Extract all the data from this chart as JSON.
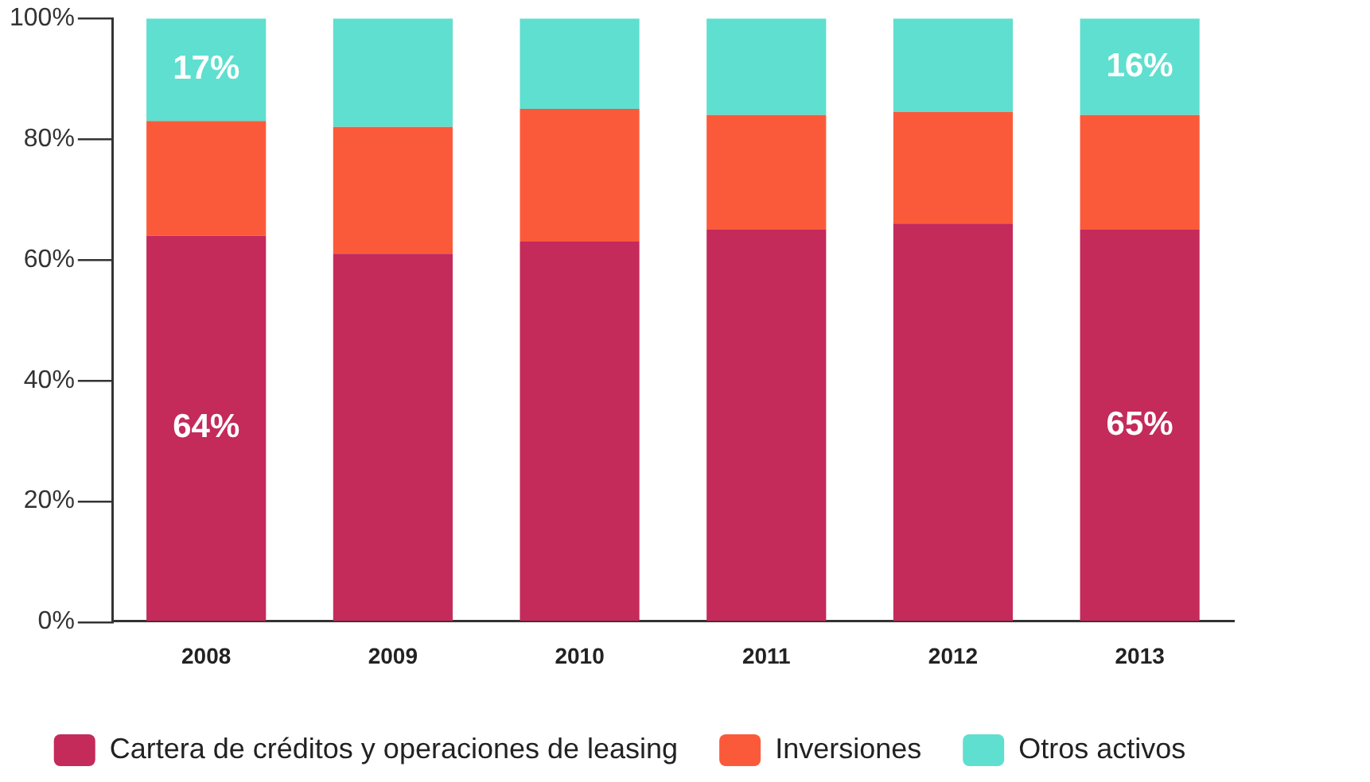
{
  "chart_data": {
    "type": "bar",
    "stacked": true,
    "categories": [
      "2008",
      "2009",
      "2010",
      "2011",
      "2012",
      "2013"
    ],
    "series": [
      {
        "name": "Cartera de créditos y operaciones de leasing",
        "color": "#c42a5a",
        "values": [
          64,
          61,
          63,
          65,
          66,
          65
        ],
        "value_labels": [
          "64%",
          null,
          null,
          null,
          null,
          "65%"
        ]
      },
      {
        "name": "Inversiones",
        "color": "#fb5a3a",
        "values": [
          19,
          21,
          22,
          19,
          18.5,
          19
        ]
      },
      {
        "name": "Otros activos",
        "color": "#5fdfcf",
        "values": [
          17,
          18,
          15,
          16,
          15.5,
          16
        ],
        "value_labels": [
          "17%",
          null,
          null,
          null,
          null,
          "16%"
        ]
      }
    ],
    "ylim": [
      0,
      100
    ],
    "yticks": [
      {
        "value": 0,
        "label": "0%"
      },
      {
        "value": 20,
        "label": "20%"
      },
      {
        "value": 40,
        "label": "40%"
      },
      {
        "value": 60,
        "label": "60%"
      },
      {
        "value": 80,
        "label": "80%"
      },
      {
        "value": 100,
        "label": "100%"
      }
    ],
    "grid": false,
    "legend": "bottom"
  }
}
